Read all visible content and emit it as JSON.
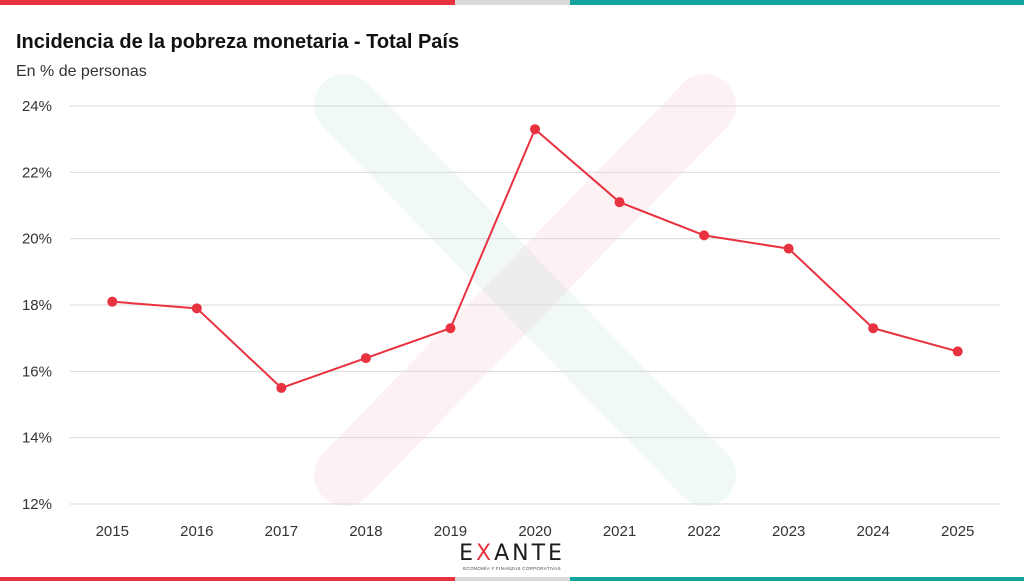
{
  "header": {
    "title": "Incidencia de la pobreza monetaria - Total País",
    "subtitle": "En % de personas"
  },
  "colors": {
    "series": "#e8323f",
    "bar_red": "#e8323f",
    "bar_grey": "#d9d9d9",
    "bar_teal": "#13a39a",
    "grid": "#d9d9d9",
    "watermark_green": "#13a39a",
    "watermark_red": "#e8323f"
  },
  "logo": {
    "word": "EXANTE",
    "tagline": "ECONOMÍA Y FINANZAS CORPORATIVAS"
  },
  "chart_data": {
    "type": "line",
    "title": "Incidencia de la pobreza monetaria - Total País",
    "subtitle": "En % de personas",
    "categories": [
      "2015",
      "2016",
      "2017",
      "2018",
      "2019",
      "2020",
      "2021",
      "2022",
      "2023",
      "2024",
      "2025"
    ],
    "series": [
      {
        "values": [
          18.1,
          17.9,
          15.5,
          16.4,
          17.3,
          23.3,
          21.1,
          20.1,
          19.7,
          17.3,
          16.6
        ]
      }
    ],
    "ylim": [
      12,
      24
    ],
    "yticks": [
      12,
      14,
      16,
      18,
      20,
      22,
      24
    ],
    "ytick_labels": [
      "12%",
      "14%",
      "16%",
      "18%",
      "20%",
      "22%",
      "24%"
    ],
    "grid": true,
    "markers": true,
    "legend": "none"
  }
}
